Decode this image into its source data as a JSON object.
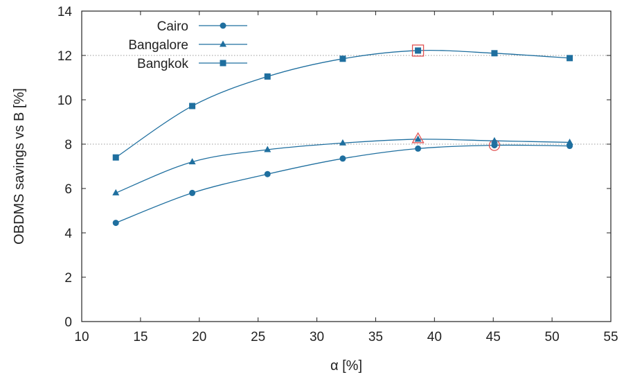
{
  "chart_data": {
    "type": "line",
    "title": "",
    "xlabel": "α [%]",
    "ylabel": "OBDMS savings vs B [%]",
    "xlim": [
      10,
      55
    ],
    "ylim": [
      0,
      14
    ],
    "xticks": [
      10,
      15,
      20,
      25,
      30,
      35,
      40,
      45,
      50,
      55
    ],
    "yticks": [
      0,
      2,
      4,
      6,
      8,
      10,
      12,
      14
    ],
    "grid": "dotted, at y=8 and y=12",
    "legend_position": "top-left",
    "line_color": "#1f6f9f",
    "highlight_color": "#e05050",
    "series": [
      {
        "name": "Cairo",
        "marker": "circle",
        "x": [
          12.9,
          19.4,
          25.8,
          32.2,
          38.6,
          45.1,
          51.5
        ],
        "y": [
          4.45,
          5.8,
          6.65,
          7.35,
          7.8,
          7.95,
          7.92
        ],
        "highlight_index": 5
      },
      {
        "name": "Bangalore",
        "marker": "triangle",
        "x": [
          12.9,
          19.4,
          25.8,
          32.2,
          38.6,
          45.1,
          51.5
        ],
        "y": [
          5.8,
          7.2,
          7.75,
          8.05,
          8.22,
          8.15,
          8.08
        ],
        "highlight_index": 4
      },
      {
        "name": "Bangkok",
        "marker": "square",
        "x": [
          12.9,
          19.4,
          25.8,
          32.2,
          38.6,
          45.1,
          51.5
        ],
        "y": [
          7.4,
          9.72,
          11.05,
          11.85,
          12.22,
          12.1,
          11.88
        ],
        "highlight_index": 4
      }
    ]
  }
}
